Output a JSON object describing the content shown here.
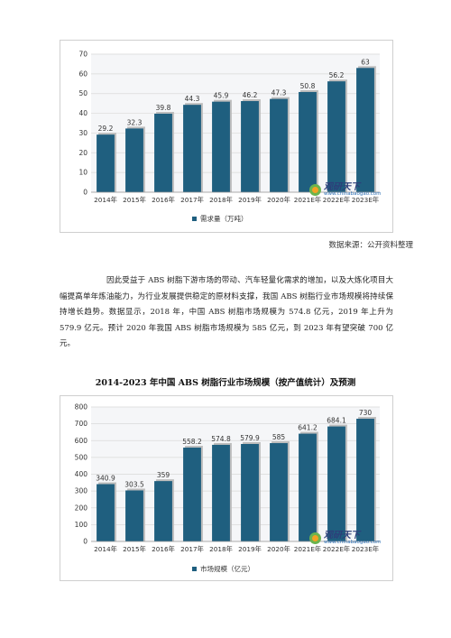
{
  "charts": [
    {
      "legend": "需求量（万吨）",
      "watermark": {
        "name": "观研天下",
        "url": "www.chinabaogao.com"
      }
    },
    {
      "legend": "市场规模（亿元）",
      "watermark": {
        "name": "观研天下",
        "url": "www.chinabaogao.com"
      }
    }
  ],
  "source": "数据来源：公开资料整理",
  "paragraph": "因此受益于 ABS 树脂下游市场的带动、汽车轻量化需求的增加，以及大炼化项目大幅提高单年炼油能力，为行业发展提供稳定的原材料支撑，我国 ABS 树脂行业市场规模将持续保持增长趋势。数据显示，2018 年，中国 ABS 树脂市场规模为 574.8 亿元，2019 年上升为 579.9 亿元。预计 2020 年我国 ABS 树脂市场规模为 585 亿元，到 2023 年有望突破 700 亿元。",
  "chart2_title": "2014-2023 年中国 ABS 树脂行业市场规模（按产值统计）及预测",
  "colors": {
    "bar": "#1f5f7f",
    "bar_shadow": "#bdbdbd",
    "grid": "#d9d9d9",
    "plot_bg": "#f5f6f8"
  },
  "chart_data": [
    {
      "type": "bar",
      "title": "",
      "categories": [
        "2014年",
        "2015年",
        "2016年",
        "2017年",
        "2018年",
        "2019年",
        "2020年",
        "2021E年",
        "2022E年",
        "2023E年"
      ],
      "series": [
        {
          "name": "需求量（万吨）",
          "values": [
            29.2,
            32.3,
            39.8,
            44.3,
            45.9,
            46.2,
            47.3,
            50.8,
            56.2,
            63
          ]
        }
      ],
      "value_labels": [
        "29.2",
        "32.3",
        "39.8",
        "44.3",
        "45.9",
        "46.2",
        "47.3",
        "50.8",
        "56.2",
        "63"
      ],
      "ylim": [
        0,
        70
      ],
      "yticks": [
        "0",
        "10",
        "20",
        "30",
        "40",
        "50",
        "60",
        "70"
      ],
      "grid": true,
      "legend_position": "bottom"
    },
    {
      "type": "bar",
      "title": "2014-2023 年中国 ABS 树脂行业市场规模（按产值统计）及预测",
      "categories": [
        "2014年",
        "2015年",
        "2016年",
        "2017年",
        "2018年",
        "2019年",
        "2020年",
        "2021E年",
        "2022E年",
        "2023E年"
      ],
      "series": [
        {
          "name": "市场规模（亿元）",
          "values": [
            340.9,
            303.5,
            359,
            558.2,
            574.8,
            579.9,
            585,
            641.2,
            684.1,
            730
          ]
        }
      ],
      "value_labels": [
        "340.9",
        "303.5",
        "359",
        "558.2",
        "574.8",
        "579.9",
        "585",
        "641.2",
        "684.1",
        "730"
      ],
      "ylim": [
        0,
        800
      ],
      "yticks": [
        "0",
        "100",
        "200",
        "300",
        "400",
        "500",
        "600",
        "700",
        "800"
      ],
      "grid": true,
      "legend_position": "bottom"
    }
  ]
}
